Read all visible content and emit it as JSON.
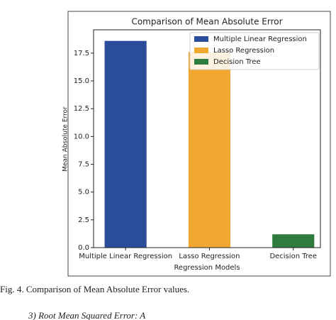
{
  "chart_data": {
    "type": "bar",
    "title": "Comparison of Mean Absolute Error",
    "x_label": "Regression Models",
    "y_label": "Mean Absolute Error",
    "categories": [
      "Multiple Linear Regression",
      "Lasso Regression",
      "Decision Tree"
    ],
    "values": [
      18.6,
      17.6,
      1.2
    ],
    "colors": [
      "#2b4c9b",
      "#f0a830",
      "#2e7d3e"
    ],
    "ylim": [
      0,
      19.6
    ],
    "yticks": [
      0.0,
      2.5,
      5.0,
      7.5,
      10.0,
      12.5,
      15.0,
      17.5
    ],
    "legend": "upper right"
  },
  "caption": "Fig. 4.   Comparison of Mean Absolute Error values.",
  "next_heading": "3)  Root Mean Squared Error: A"
}
